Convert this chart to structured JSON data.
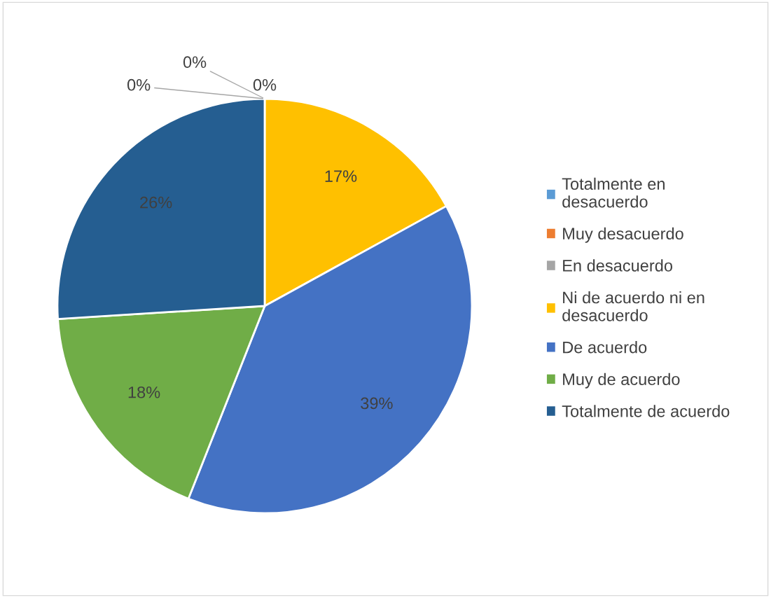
{
  "chart_data": {
    "type": "pie",
    "categories": [
      "Totalmente en desacuerdo",
      "Muy desacuerdo",
      "En desacuerdo",
      "Ni de acuerdo ni en desacuerdo",
      "De acuerdo",
      "Muy de acuerdo",
      "Totalmente de acuerdo"
    ],
    "values": [
      0,
      0,
      0,
      17,
      39,
      18,
      26
    ],
    "colors": [
      "#5b9bd5",
      "#ed7d31",
      "#a5a5a5",
      "#ffc000",
      "#4472c4",
      "#70ad47",
      "#255e91"
    ],
    "value_labels": [
      "0%",
      "0%",
      "0%",
      "17%",
      "39%",
      "18%",
      "26%"
    ],
    "legend": "right"
  }
}
